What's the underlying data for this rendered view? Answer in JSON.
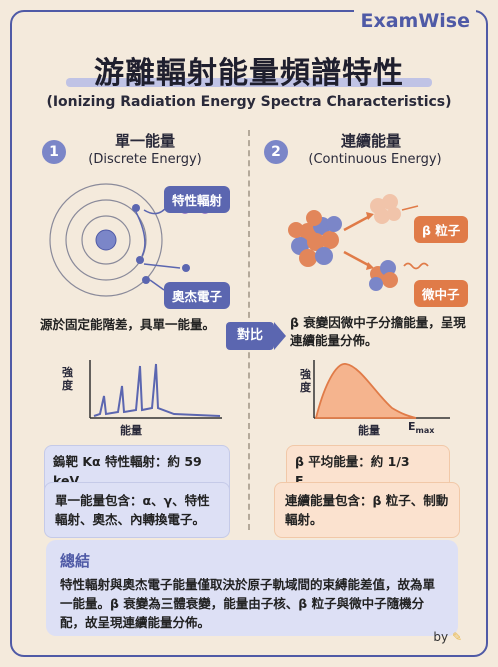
{
  "brand": "ExamWise",
  "title": "游離輻射能量頻譜特性",
  "subtitle": "(Ionizing Radiation Energy Spectra Characteristics)",
  "left": {
    "number": "1",
    "title": "單一能量",
    "subtitle": "(Discrete Energy)",
    "labels": {
      "characteristic": "特性輻射",
      "auger": "奧杰電子"
    },
    "description": "源於固定能階差，具單一能量。",
    "chart": {
      "ylabel": "強度",
      "xlabel": "能量"
    },
    "highlight": "鎢靶 Kα 特性輻射：約 59 keV",
    "note": "單一能量包含：α、γ、特性輻射、奧杰、內轉換電子。"
  },
  "compare_label": "對比",
  "right": {
    "number": "2",
    "title": "連續能量",
    "subtitle": "(Continuous Energy)",
    "labels": {
      "beta": "β 粒子",
      "neutrino": "微中子"
    },
    "description": "β 衰變因微中子分擔能量，呈現連續能量分佈。",
    "chart": {
      "ylabel": "強度",
      "xlabel": "能量",
      "emax": "E",
      "emax_sub": "max"
    },
    "highlight_main": "β 平均能量：約 1/3 E",
    "highlight_sub": "max",
    "note": "連續能量包含：β 粒子、制動輻射。"
  },
  "summary": {
    "title": "總結",
    "text": "特性輻射與奧杰電子能量僅取決於原子軌域間的束縛能差值，故為單一能量。β 衰變為三體衰變，能量由子核、β 粒子與微中子隨機分配，故呈現連續能量分佈。"
  },
  "byline": "by",
  "colors": {
    "accent": "#4f5aa6",
    "orange": "#e07b48",
    "blue_box": "#dde0f5",
    "orange_box": "#fbe2cf"
  }
}
